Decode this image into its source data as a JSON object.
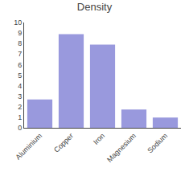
{
  "chart_data": {
    "type": "bar",
    "title": "Density",
    "categories": [
      "Aluminium",
      "Copper",
      "Iron",
      "Magnesium",
      "Sodium"
    ],
    "values": [
      2.7,
      8.9,
      7.9,
      1.74,
      0.97
    ],
    "color": "#9999dd",
    "ylim": [
      0,
      10
    ],
    "yticks": [
      0,
      1,
      2,
      3,
      4,
      5,
      6,
      7,
      8,
      9,
      10
    ],
    "grid": false
  }
}
